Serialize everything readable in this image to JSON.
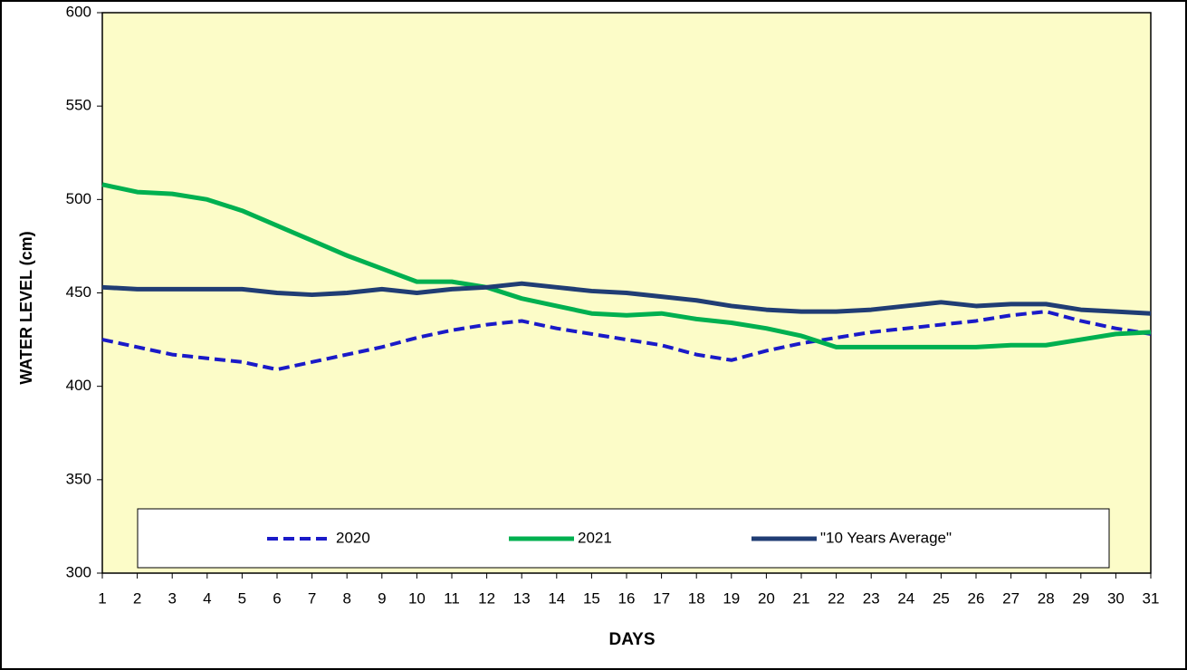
{
  "chart_data": {
    "type": "line",
    "y_label": "WATER LEVEL (cm)",
    "x_label": "DAYS",
    "x": [
      1,
      2,
      3,
      4,
      5,
      6,
      7,
      8,
      9,
      10,
      11,
      12,
      13,
      14,
      15,
      16,
      17,
      18,
      19,
      20,
      21,
      22,
      23,
      24,
      25,
      26,
      27,
      28,
      29,
      30,
      31
    ],
    "xlim": [
      1,
      31
    ],
    "xticks": [
      1,
      2,
      3,
      4,
      5,
      6,
      7,
      8,
      9,
      10,
      11,
      12,
      13,
      14,
      15,
      16,
      17,
      18,
      19,
      20,
      21,
      22,
      23,
      24,
      25,
      26,
      27,
      28,
      29,
      30,
      31
    ],
    "ylim": [
      300,
      600
    ],
    "yticks": [
      300,
      350,
      400,
      450,
      500,
      550,
      600
    ],
    "background": "#fcfcc8",
    "series": [
      {
        "name": "2020",
        "color": "#1a1ac8",
        "line_style": "dashed",
        "values": [
          425,
          421,
          417,
          415,
          413,
          409,
          413,
          417,
          421,
          426,
          430,
          433,
          435,
          431,
          428,
          425,
          422,
          417,
          414,
          419,
          423,
          426,
          429,
          431,
          433,
          435,
          438,
          440,
          435,
          431,
          428
        ]
      },
      {
        "name": "2021",
        "color": "#00b050",
        "line_style": "solid",
        "values": [
          508,
          504,
          503,
          500,
          494,
          486,
          478,
          470,
          463,
          456,
          456,
          453,
          447,
          443,
          439,
          438,
          439,
          436,
          434,
          431,
          427,
          421,
          421,
          421,
          421,
          421,
          422,
          422,
          425,
          428,
          429
        ]
      },
      {
        "name": "\"10 Years Average\"",
        "color": "#203d74",
        "line_style": "solid",
        "values": [
          453,
          452,
          452,
          452,
          452,
          450,
          449,
          450,
          452,
          450,
          452,
          453,
          455,
          453,
          451,
          450,
          448,
          446,
          443,
          441,
          440,
          440,
          441,
          443,
          445,
          443,
          444,
          444,
          441,
          440,
          439
        ]
      }
    ]
  }
}
